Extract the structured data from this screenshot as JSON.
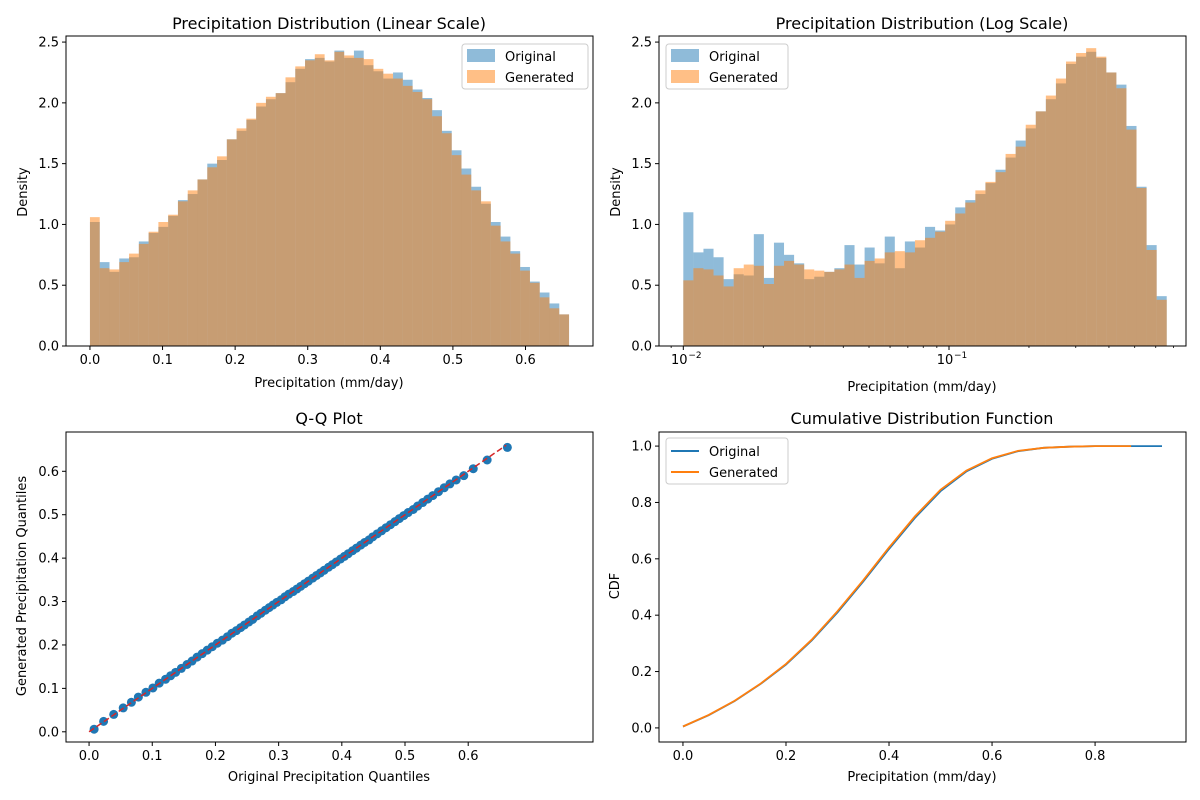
{
  "colors": {
    "original": "#1f77b4",
    "generated": "#ff7f0e",
    "reference_line": "#d62728",
    "axes": "#000000",
    "legend_border": "#cccccc"
  },
  "chart_data": [
    {
      "type": "bar",
      "title": "Precipitation Distribution (Linear Scale)",
      "xlabel": "Precipitation (mm/day)",
      "ylabel": "Density",
      "xlim": [
        -0.033,
        0.693
      ],
      "ylim": [
        0,
        2.55
      ],
      "xticks": [
        0,
        0.1,
        0.2,
        0.3,
        0.4,
        0.5,
        0.6
      ],
      "xtick_labels": [
        "0.0",
        "0.1",
        "0.2",
        "0.3",
        "0.4",
        "0.5",
        "0.6"
      ],
      "yticks": [
        0,
        0.5,
        1.0,
        1.5,
        2.0,
        2.5
      ],
      "ytick_labels": [
        "0.0",
        "0.5",
        "1.0",
        "1.5",
        "2.0",
        "2.5"
      ],
      "legend": {
        "position": "upper-right",
        "entries": [
          "Original",
          "Generated"
        ]
      },
      "bin_range": [
        0,
        0.66
      ],
      "series": [
        {
          "name": "Original",
          "opacity": 0.5,
          "values": [
            1.02,
            0.69,
            0.61,
            0.72,
            0.73,
            0.86,
            0.93,
            0.98,
            1.07,
            1.2,
            1.25,
            1.37,
            1.5,
            1.53,
            1.7,
            1.77,
            1.86,
            1.97,
            2.03,
            2.08,
            2.17,
            2.28,
            2.36,
            2.37,
            2.34,
            2.43,
            2.37,
            2.43,
            2.31,
            2.26,
            2.2,
            2.25,
            2.19,
            2.11,
            2.04,
            1.94,
            1.77,
            1.61,
            1.46,
            1.31,
            1.17,
            1.02,
            0.9,
            0.78,
            0.65,
            0.53,
            0.44,
            0.35,
            0.26
          ]
        },
        {
          "name": "Generated",
          "opacity": 0.5,
          "values": [
            1.06,
            0.64,
            0.63,
            0.69,
            0.76,
            0.84,
            0.94,
            1.02,
            1.08,
            1.19,
            1.28,
            1.37,
            1.47,
            1.56,
            1.7,
            1.79,
            1.87,
            2.0,
            2.05,
            2.08,
            2.21,
            2.3,
            2.35,
            2.4,
            2.35,
            2.42,
            2.39,
            2.37,
            2.36,
            2.28,
            2.24,
            2.2,
            2.14,
            2.09,
            2.03,
            1.89,
            1.75,
            1.57,
            1.41,
            1.28,
            1.19,
            0.99,
            0.86,
            0.76,
            0.62,
            0.52,
            0.4,
            0.31,
            0.26
          ]
        }
      ]
    },
    {
      "type": "bar",
      "title": "Precipitation Distribution (Log Scale)",
      "xlabel": "Precipitation (mm/day)",
      "ylabel": "Density",
      "xscale": "log",
      "xlim": [
        0.0081,
        0.78
      ],
      "ylim": [
        0,
        2.55
      ],
      "xticks": [
        0.01,
        0.1
      ],
      "xtick_labels": [
        "10",
        "10"
      ],
      "xtick_exponents": [
        "−2",
        "−1"
      ],
      "yticks": [
        0,
        0.5,
        1.0,
        1.5,
        2.0,
        2.5
      ],
      "ytick_labels": [
        "0.0",
        "0.5",
        "1.0",
        "1.5",
        "2.0",
        "2.5"
      ],
      "legend": {
        "position": "upper-left",
        "entries": [
          "Original",
          "Generated"
        ]
      },
      "bin_range": [
        0.01,
        0.66
      ],
      "series": [
        {
          "name": "Original",
          "opacity": 0.5,
          "values": [
            1.1,
            0.77,
            0.8,
            0.73,
            0.55,
            0.59,
            0.58,
            0.92,
            0.56,
            0.85,
            0.75,
            0.68,
            0.55,
            0.57,
            0.61,
            0.64,
            0.83,
            0.67,
            0.81,
            0.68,
            0.9,
            0.64,
            0.86,
            0.81,
            0.98,
            0.95,
            1.0,
            1.14,
            1.2,
            1.25,
            1.34,
            1.45,
            1.55,
            1.69,
            1.79,
            1.93,
            2.03,
            2.16,
            2.32,
            2.38,
            2.42,
            2.37,
            2.25,
            2.15,
            1.81,
            1.31,
            0.83,
            0.41
          ]
        },
        {
          "name": "Generated",
          "opacity": 0.5,
          "values": [
            0.54,
            0.64,
            0.63,
            0.58,
            0.49,
            0.64,
            0.67,
            0.66,
            0.51,
            0.66,
            0.7,
            0.67,
            0.63,
            0.62,
            0.61,
            0.63,
            0.67,
            0.56,
            0.7,
            0.72,
            0.77,
            0.78,
            0.77,
            0.87,
            0.89,
            0.94,
            1.03,
            1.09,
            1.18,
            1.28,
            1.35,
            1.43,
            1.58,
            1.64,
            1.82,
            1.93,
            2.06,
            2.2,
            2.34,
            2.41,
            2.45,
            2.38,
            2.25,
            2.12,
            1.78,
            1.3,
            0.79,
            0.38
          ]
        }
      ]
    },
    {
      "type": "scatter",
      "title": "Q-Q Plot",
      "xlabel": "Original Precipitation Quantiles",
      "ylabel": "Generated Precipitation Quantiles",
      "xlim": [
        -0.0365,
        0.7975
      ],
      "ylim": [
        -0.0235,
        0.6905
      ],
      "xticks": [
        0,
        0.1,
        0.2,
        0.3,
        0.4,
        0.5,
        0.6
      ],
      "xtick_labels": [
        "0.0",
        "0.1",
        "0.2",
        "0.3",
        "0.4",
        "0.5",
        "0.6"
      ],
      "yticks": [
        0,
        0.1,
        0.2,
        0.3,
        0.4,
        0.5,
        0.6
      ],
      "ytick_labels": [
        "0.0",
        "0.1",
        "0.2",
        "0.3",
        "0.4",
        "0.5",
        "0.6"
      ],
      "reference_line": {
        "x": [
          0.0,
          0.66
        ],
        "y": [
          0.0,
          0.66
        ],
        "style": "dashed"
      },
      "series": [
        {
          "name": "",
          "x": [
            0.008,
            0.023,
            0.039,
            0.054,
            0.067,
            0.078,
            0.09,
            0.101,
            0.111,
            0.121,
            0.129,
            0.137,
            0.146,
            0.155,
            0.163,
            0.171,
            0.179,
            0.187,
            0.195,
            0.203,
            0.211,
            0.219,
            0.226,
            0.233,
            0.24,
            0.246,
            0.253,
            0.259,
            0.266,
            0.272,
            0.279,
            0.285,
            0.291,
            0.297,
            0.304,
            0.31,
            0.316,
            0.323,
            0.329,
            0.335,
            0.341,
            0.347,
            0.354,
            0.36,
            0.366,
            0.372,
            0.379,
            0.385,
            0.391,
            0.398,
            0.404,
            0.41,
            0.417,
            0.423,
            0.43,
            0.436,
            0.443,
            0.449,
            0.456,
            0.463,
            0.47,
            0.477,
            0.484,
            0.491,
            0.498,
            0.505,
            0.513,
            0.52,
            0.528,
            0.536,
            0.544,
            0.553,
            0.562,
            0.571,
            0.581,
            0.593,
            0.608,
            0.63,
            0.662
          ],
          "y": [
            0.006,
            0.024,
            0.04,
            0.055,
            0.068,
            0.08,
            0.091,
            0.101,
            0.112,
            0.121,
            0.129,
            0.137,
            0.146,
            0.155,
            0.163,
            0.172,
            0.18,
            0.188,
            0.196,
            0.204,
            0.211,
            0.219,
            0.227,
            0.233,
            0.24,
            0.246,
            0.253,
            0.259,
            0.267,
            0.273,
            0.28,
            0.286,
            0.292,
            0.298,
            0.304,
            0.311,
            0.317,
            0.323,
            0.329,
            0.335,
            0.341,
            0.347,
            0.354,
            0.36,
            0.366,
            0.372,
            0.379,
            0.385,
            0.391,
            0.398,
            0.404,
            0.41,
            0.417,
            0.423,
            0.43,
            0.436,
            0.442,
            0.449,
            0.456,
            0.463,
            0.47,
            0.477,
            0.484,
            0.491,
            0.498,
            0.505,
            0.512,
            0.52,
            0.528,
            0.536,
            0.544,
            0.553,
            0.562,
            0.571,
            0.58,
            0.59,
            0.606,
            0.626,
            0.655
          ]
        }
      ]
    },
    {
      "type": "line",
      "title": "Cumulative Distribution Function",
      "xlabel": "Precipitation (mm/day)",
      "ylabel": "CDF",
      "xlim": [
        -0.0465,
        0.9765
      ],
      "ylim": [
        -0.05,
        1.05
      ],
      "xticks": [
        0,
        0.2,
        0.4,
        0.6,
        0.8
      ],
      "xtick_labels": [
        "0.0",
        "0.2",
        "0.4",
        "0.6",
        "0.8"
      ],
      "yticks": [
        0,
        0.2,
        0.4,
        0.6,
        0.8,
        1.0
      ],
      "ytick_labels": [
        "0.0",
        "0.2",
        "0.4",
        "0.6",
        "0.8",
        "1.0"
      ],
      "legend": {
        "position": "upper-left",
        "entries": [
          "Original",
          "Generated"
        ]
      },
      "series": [
        {
          "name": "Original",
          "x": [
            0,
            0.05,
            0.1,
            0.15,
            0.2,
            0.25,
            0.3,
            0.35,
            0.4,
            0.45,
            0.5,
            0.55,
            0.6,
            0.65,
            0.7,
            0.75,
            0.8,
            0.85,
            0.93
          ],
          "y": [
            0.005,
            0.045,
            0.095,
            0.155,
            0.225,
            0.31,
            0.41,
            0.52,
            0.635,
            0.745,
            0.84,
            0.91,
            0.955,
            0.982,
            0.994,
            0.998,
            1.0,
            1.0,
            1.0
          ]
        },
        {
          "name": "Generated",
          "x": [
            0,
            0.05,
            0.1,
            0.15,
            0.2,
            0.25,
            0.3,
            0.35,
            0.4,
            0.45,
            0.5,
            0.55,
            0.6,
            0.65,
            0.7,
            0.75,
            0.8,
            0.87
          ],
          "y": [
            0.005,
            0.046,
            0.096,
            0.156,
            0.227,
            0.313,
            0.414,
            0.524,
            0.64,
            0.75,
            0.845,
            0.913,
            0.957,
            0.983,
            0.994,
            0.998,
            1.0,
            1.0
          ]
        }
      ]
    }
  ]
}
